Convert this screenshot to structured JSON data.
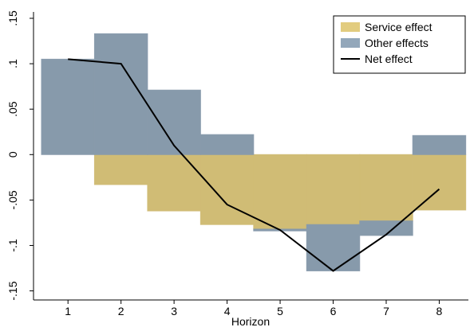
{
  "chart_data": {
    "type": "bar",
    "x_label": "Horizon",
    "x": [
      1,
      2,
      3,
      4,
      5,
      6,
      7,
      8
    ],
    "xlim": [
      0.35,
      8.55
    ],
    "xticks": [
      1,
      2,
      3,
      4,
      5,
      6,
      7,
      8
    ],
    "ylim": [
      -0.16,
      0.157
    ],
    "yticks": [
      {
        "value": 0.15,
        "label": ".15"
      },
      {
        "value": 0.1,
        "label": ".1"
      },
      {
        "value": 0.05,
        "label": ".05"
      },
      0,
      {
        "value": -0.05,
        "label": "-.05"
      },
      {
        "value": -0.1,
        "label": "-.1"
      },
      {
        "value": -0.15,
        "label": "-.15"
      }
    ],
    "legend": "top-right",
    "series": [
      {
        "name": "Service effect",
        "type": "bar",
        "color": "#e2cc7f",
        "values": [
          0,
          -0.033,
          -0.062,
          -0.077,
          -0.082,
          -0.077,
          -0.073,
          -0.061
        ]
      },
      {
        "name": "Other effects",
        "type": "bar",
        "color": "#93a7ba",
        "values": [
          0.105,
          0.133,
          0.071,
          0.022,
          -0.002,
          -0.051,
          -0.016,
          0.021
        ]
      },
      {
        "name": "Net effect",
        "type": "line",
        "color": "#000000",
        "values": [
          0.105,
          0.1,
          0.01,
          -0.055,
          -0.083,
          -0.128,
          -0.088,
          -0.038
        ]
      }
    ]
  }
}
